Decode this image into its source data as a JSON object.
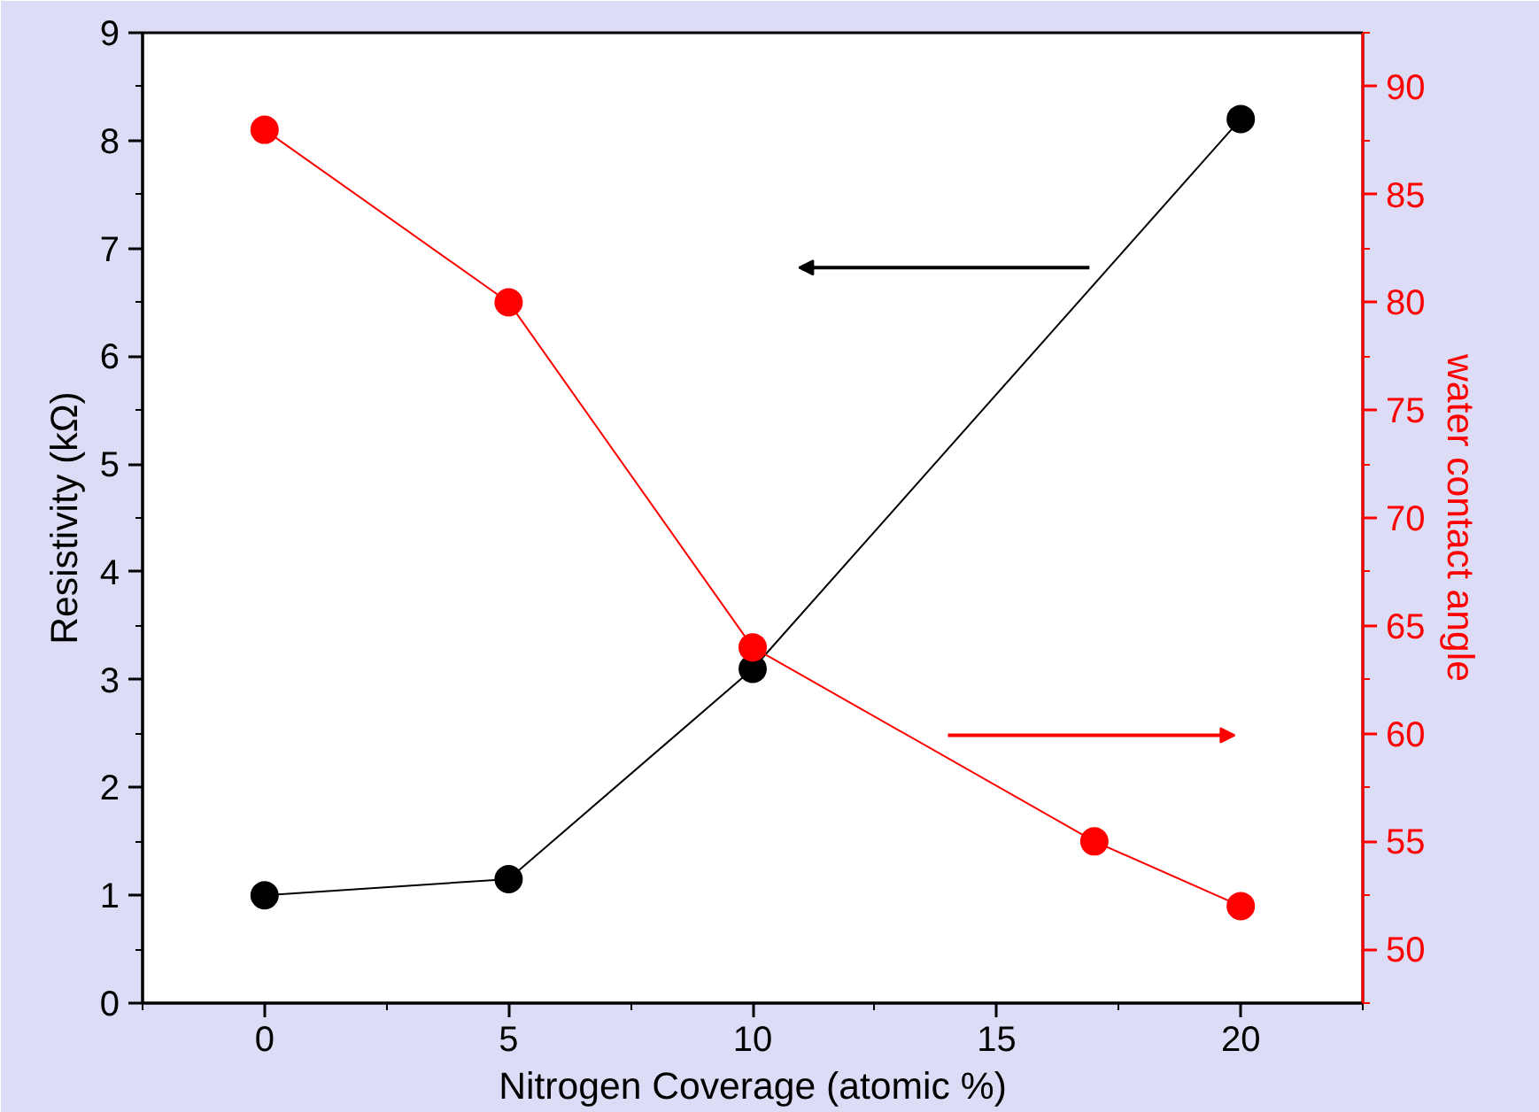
{
  "chart_data": {
    "type": "line",
    "xlabel": "Nitrogen Coverage (atomic %)",
    "ylabel": "Resistivity (kΩ)",
    "y2label": "water contact angle",
    "xlim": [
      -2.5,
      22.5
    ],
    "xticks": [
      0,
      5,
      10,
      15,
      20
    ],
    "ylim": [
      0,
      9
    ],
    "yticks": [
      0,
      1,
      2,
      3,
      4,
      5,
      6,
      7,
      8,
      9
    ],
    "y2lim": [
      47.5,
      92.5
    ],
    "y2ticks": [
      50,
      55,
      60,
      65,
      70,
      75,
      80,
      85,
      90
    ],
    "marker": "circle",
    "line_style": "solid",
    "grid": false,
    "series": [
      {
        "color": "#000000",
        "x": [
          0,
          5,
          10,
          20
        ],
        "values": [
          1,
          1.15,
          3.1,
          8.2
        ]
      },
      {
        "color": "#ff0000",
        "axis": "y2",
        "x": [
          0,
          5,
          10,
          17,
          20
        ],
        "values": [
          88,
          80,
          64,
          55,
          52
        ]
      }
    ]
  }
}
